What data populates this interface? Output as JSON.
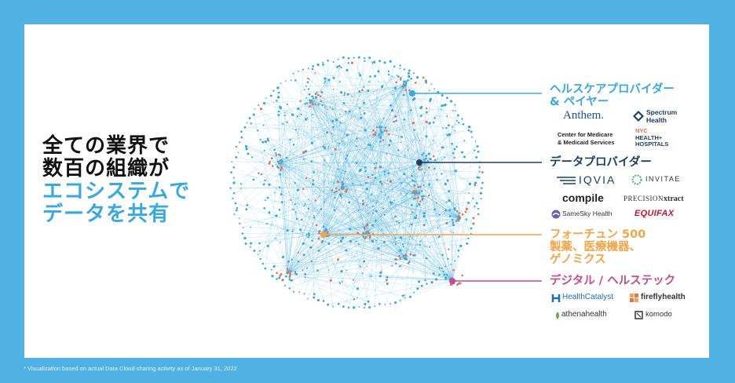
{
  "headline": {
    "line1": "全ての業界で",
    "line2": "数百の組織が",
    "line3": "エコシステムで",
    "line4": "データを共有"
  },
  "sections": {
    "providers": {
      "line1": "ヘルスケアプロバイダー",
      "line2": "& ペイヤー",
      "color": "#3aa8e0"
    },
    "data": {
      "line1": "データプロバイダー",
      "color": "#1c3f66"
    },
    "pharma": {
      "line1": "フォーチュン 500",
      "line2": "製薬、医療機器、",
      "line3": "ゲノミクス",
      "color": "#f2a447"
    },
    "digital": {
      "line1": "デジタル / ヘルステック",
      "color": "#c24a8e"
    }
  },
  "logos": {
    "anthem": "Anthem.",
    "spectrum1": "Spectrum",
    "spectrum2": "Health",
    "cms1": "Center for Medicare",
    "cms2": "& Medicaid Services",
    "nyc1": "NYC",
    "nyc2": "HEALTH+",
    "nyc3": "HOSPITALS",
    "iqvia": "IQVIA",
    "invitae": "INVITAE",
    "compile": "compile",
    "precision1": "PRECISION",
    "precision2": "xtract",
    "samesky": "SameSky Health",
    "equifax": "EQUIFAX",
    "healthcatalyst": "HealthCatalyst",
    "firefly": "fireflyhealth",
    "athena": "athenahealth",
    "komodo": "komodo"
  },
  "footnote": "* Visualization based on actual Data Cloud sharing activity as of January 31, 2022",
  "colors": {
    "frame": "#4fb1e4",
    "network_node": "#3aa8e0",
    "network_hub": "#e8704a"
  }
}
